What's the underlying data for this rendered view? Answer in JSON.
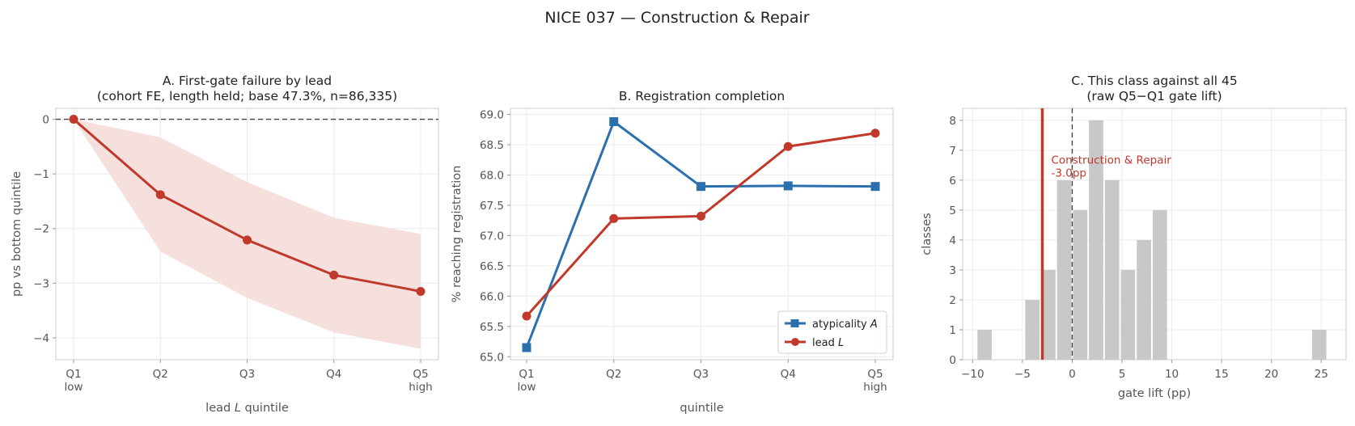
{
  "figure": {
    "title": "NICE 037 — Construction & Repair"
  },
  "colors": {
    "red": "#c0392b",
    "blue": "#2c6fad",
    "band": "#f4dad8",
    "hist": "#c8c8c8",
    "axis": "#cccccc",
    "grid": "#ececec",
    "text": "#555555"
  },
  "chart_data": [
    {
      "type": "line",
      "panel": "A",
      "title_lines": [
        "A. First-gate failure by lead",
        "(cohort FE, length held; base 47.3%, n=86,335)"
      ],
      "xlabel": "lead L quintile",
      "ylabel": "pp vs bottom quintile",
      "categories": [
        "Q1",
        "Q2",
        "Q3",
        "Q4",
        "Q5"
      ],
      "category_sublabels": [
        "low",
        "",
        "",
        "",
        "high"
      ],
      "y_ticks": [
        "0",
        "−1",
        "−2",
        "−3",
        "−4"
      ],
      "ylim": [
        -4.4,
        0.2
      ],
      "series": [
        {
          "values": [
            0,
            -1.38,
            -2.21,
            -2.85,
            -3.15
          ],
          "ci_low": [
            0,
            -2.42,
            -3.27,
            -3.9,
            -4.2
          ],
          "ci_high": [
            0,
            -0.33,
            -1.15,
            -1.8,
            -2.1
          ]
        }
      ],
      "reference_line": 0,
      "grid": true
    },
    {
      "type": "line",
      "panel": "B",
      "title_lines": [
        "B. Registration completion"
      ],
      "xlabel": "quintile",
      "ylabel": "% reaching registration",
      "categories": [
        "Q1",
        "Q2",
        "Q3",
        "Q4",
        "Q5"
      ],
      "category_sublabels": [
        "low",
        "",
        "",
        "",
        "high"
      ],
      "y_ticks": [
        "65.0",
        "65.5",
        "66.0",
        "66.5",
        "67.0",
        "67.5",
        "68.0",
        "68.5",
        "69.0"
      ],
      "ylim": [
        64.95,
        69.1
      ],
      "series": [
        {
          "name": "atypicality A",
          "marker": "square",
          "values": [
            65.15,
            68.88,
            67.81,
            67.82,
            67.81
          ]
        },
        {
          "name": "lead L",
          "marker": "circle",
          "values": [
            65.67,
            67.28,
            67.32,
            68.47,
            68.69
          ]
        }
      ],
      "legend": "lower-right",
      "grid": true
    },
    {
      "type": "bar",
      "panel": "C",
      "title_lines": [
        "C. This class against all 45",
        "(raw Q5−Q1 gate lift)"
      ],
      "xlabel": "gate lift (pp)",
      "ylabel": "classes",
      "x_ticks": [
        "−10",
        "−5",
        "0",
        "5",
        "10",
        "15",
        "20",
        "25"
      ],
      "y_ticks": [
        "0",
        "1",
        "2",
        "3",
        "4",
        "5",
        "6",
        "7",
        "8"
      ],
      "xlim": [
        -11,
        27.5
      ],
      "ylim": [
        0,
        8.4
      ],
      "bins": [
        {
          "start": -9.6,
          "count": 1
        },
        {
          "start": -4.8,
          "count": 2
        },
        {
          "start": -3.2,
          "count": 3
        },
        {
          "start": -1.6,
          "count": 6
        },
        {
          "start": 0.0,
          "count": 5
        },
        {
          "start": 1.6,
          "count": 8
        },
        {
          "start": 3.2,
          "count": 6
        },
        {
          "start": 4.8,
          "count": 3
        },
        {
          "start": 6.4,
          "count": 4
        },
        {
          "start": 8.0,
          "count": 5
        },
        {
          "start": 24.0,
          "count": 1
        }
      ],
      "bin_width": 1.6,
      "highlight": {
        "value": -3.0,
        "label_lines": [
          "Construction & Repair",
          "-3.0pp"
        ]
      },
      "reference_line": 0,
      "grid": true
    }
  ]
}
